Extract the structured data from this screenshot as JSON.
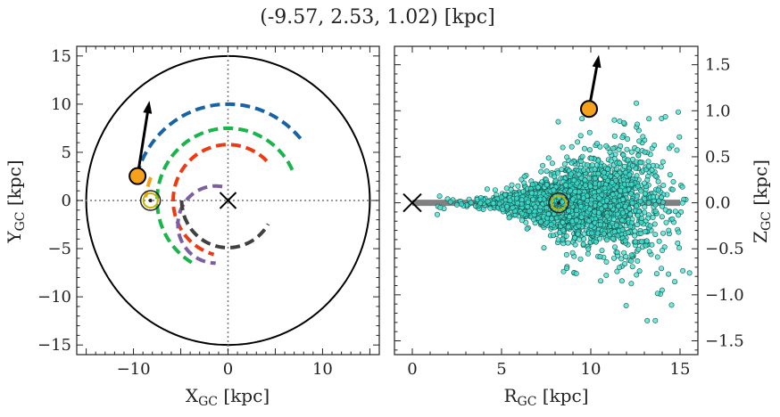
{
  "title": "(-9.57, 2.53, 1.02) [kpc]",
  "colors": {
    "orange_marker": "#f5a11c",
    "blue_arm": "#1763a6",
    "green_arm": "#1ab54a",
    "red_arm": "#ee3a13",
    "purple_arm": "#7d5ea0",
    "dark_arm": "#404040",
    "scatter_fill": "#40e0d0",
    "disk_plane": "#808080",
    "sun_ring": "#c8b400"
  },
  "chart_data": [
    {
      "type": "line",
      "name": "galactic-plane-xy",
      "xlabel": "X",
      "xlabel_sub": "GC",
      "xlabel_unit": " [kpc]",
      "ylabel": "Y",
      "ylabel_sub": "GC",
      "ylabel_unit": " [kpc]",
      "xlim": [
        -16,
        16
      ],
      "ylim": [
        -16,
        16
      ],
      "xticks": [
        -10,
        0,
        10
      ],
      "yticks": [
        15,
        10,
        5,
        0,
        -5,
        -10,
        -15
      ],
      "boundary_circle_radius": 15,
      "center": [
        0,
        0
      ],
      "sun": [
        -8.2,
        0
      ],
      "object": [
        -9.57,
        2.53
      ],
      "velocity_arrow_end": [
        -8.4,
        9.8
      ],
      "arms": [
        {
          "color_key": "blue_arm",
          "radius": 10,
          "theta_start_deg": 40,
          "theta_end_deg": 167
        },
        {
          "color_key": "green_arm",
          "radius": 7.5,
          "theta_start_deg": 25,
          "theta_end_deg": 240
        },
        {
          "color_key": "red_arm",
          "radius": 5.8,
          "theta_start_deg": 45,
          "theta_end_deg": 255
        },
        {
          "color_key": "purple_arm",
          "radius": 4.0,
          "theta_start_deg": 80,
          "theta_end_deg": 270,
          "shift": [
            -1.3,
            -2.5
          ]
        },
        {
          "color_key": "dark_arm",
          "radius": 4.9,
          "theta_start_deg": 180,
          "theta_end_deg": 330,
          "shift": [
            0,
            0
          ]
        },
        {
          "color_key": "orange_marker",
          "radius": 8.8,
          "theta_start_deg": 158,
          "theta_end_deg": 172,
          "shift": [
            0,
            -0.9
          ]
        }
      ]
    },
    {
      "type": "scatter",
      "name": "r-z-plane",
      "xlabel": "R",
      "xlabel_sub": "GC",
      "xlabel_unit": " [kpc]",
      "ylabel": "Z",
      "ylabel_sub": "GC",
      "ylabel_unit": " [kpc]",
      "xlim": [
        -1,
        16
      ],
      "ylim": [
        -1.65,
        1.7
      ],
      "xticks": [
        0,
        5,
        10,
        15
      ],
      "yticks": [
        1.5,
        1.0,
        0.5,
        0.0,
        -0.5,
        -1.0,
        -1.5
      ],
      "ytick_labels": [
        "1.5",
        "1.0",
        "0.5",
        "0.0",
        "−0.5",
        "−1.0",
        "−1.5"
      ],
      "center": [
        0,
        0
      ],
      "sun": [
        8.2,
        0
      ],
      "object": [
        9.9,
        1.02
      ],
      "velocity_arrow_end": [
        10.4,
        1.55
      ],
      "disk_plane": {
        "x": [
          0,
          15
        ],
        "y": 0
      },
      "scatter_points_shown": 2600,
      "scatter_envelope": "population of stars spreading from R~1 to R~15.5 kpc, thin near R~5 (|Z|<0.1) and flaring to |Z|~1.5 at R~15"
    }
  ]
}
